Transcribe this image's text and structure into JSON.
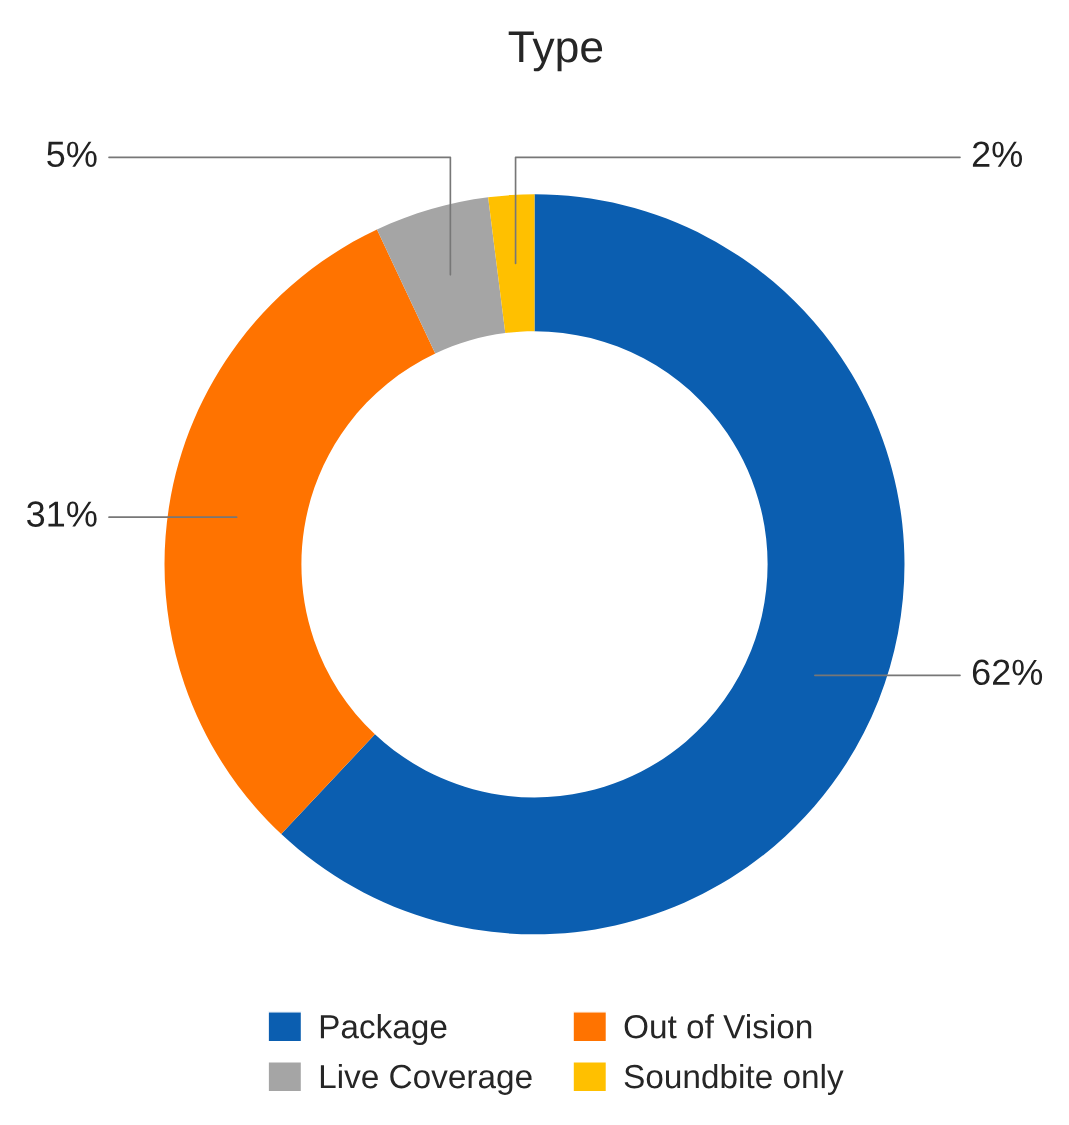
{
  "chart_data": {
    "type": "donut",
    "title": "Type",
    "categories": [
      "Package",
      "Out of Vision",
      "Live Coverage",
      "Soundbite only"
    ],
    "values": [
      62,
      31,
      5,
      2
    ],
    "colors": [
      "#0b5eb0",
      "#ff7300",
      "#a5a5a5",
      "#ffc000"
    ],
    "value_labels": [
      "62%",
      "31%",
      "5%",
      "2%"
    ],
    "legend": "bottom"
  }
}
